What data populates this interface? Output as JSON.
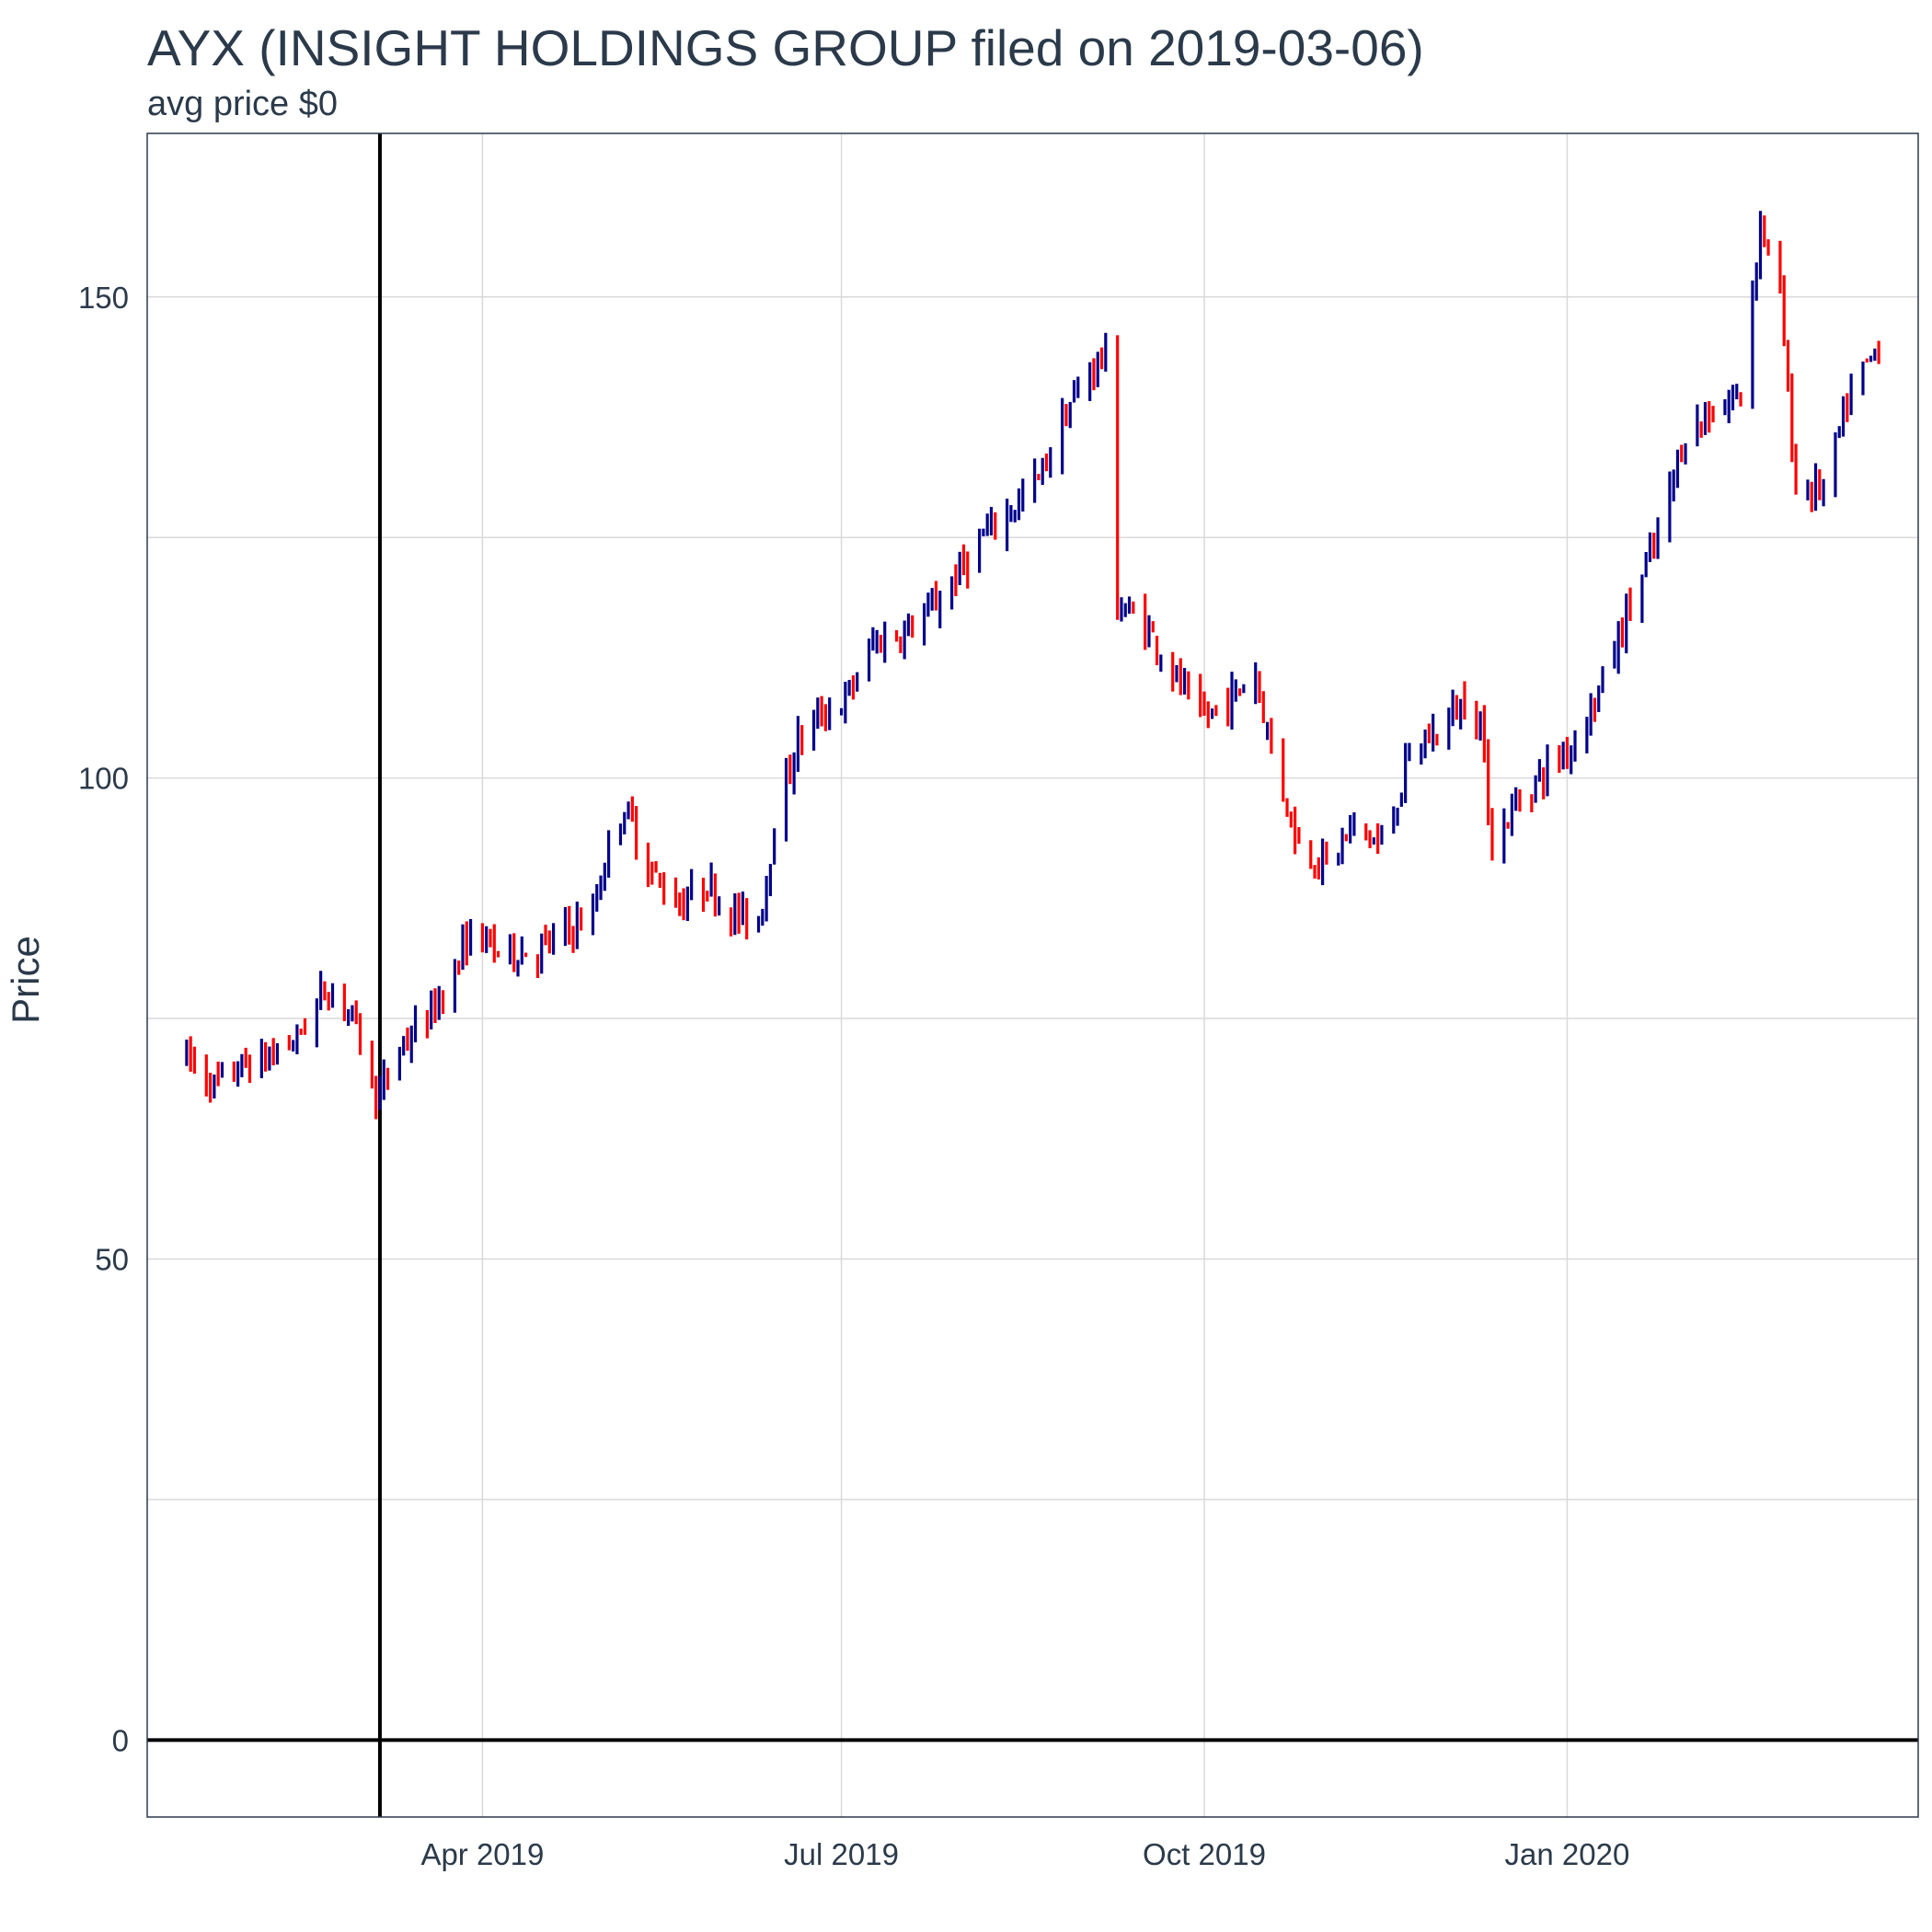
{
  "chart_data": {
    "type": "ohlc",
    "title": "AYX (INSIGHT HOLDINGS GROUP filed on 2019-03-06)",
    "subtitle": "avg price $0",
    "ylabel": "Price",
    "xlabel": "",
    "ylim": [
      -8,
      167
    ],
    "xlim": [
      "2019-01-06",
      "2020-03-30"
    ],
    "y_ticks": [
      0,
      50,
      100,
      150
    ],
    "x_ticks": [
      {
        "date": "2019-04-01",
        "label": "Apr 2019"
      },
      {
        "date": "2019-07-01",
        "label": "Jul 2019"
      },
      {
        "date": "2019-10-01",
        "label": "Oct 2019"
      },
      {
        "date": "2020-01-01",
        "label": "Jan 2020"
      }
    ],
    "grid": true,
    "reference_lines": {
      "vertical_date": "2019-03-06",
      "horizontal_value": 0
    },
    "colors": {
      "up": "#00008b",
      "down": "#ff0000",
      "reference": "#000000",
      "grid": "#d9d9d9",
      "panel_border": "#2b3a4a"
    },
    "anchors": [
      [
        "2019-01-16",
        71
      ],
      [
        "2019-01-23",
        68
      ],
      [
        "2019-01-30",
        70
      ],
      [
        "2019-02-06",
        71
      ],
      [
        "2019-02-13",
        73
      ],
      [
        "2019-02-20",
        78
      ],
      [
        "2019-02-25",
        77
      ],
      [
        "2019-03-01",
        73
      ],
      [
        "2019-03-04",
        68
      ],
      [
        "2019-03-06",
        67
      ],
      [
        "2019-03-11",
        72
      ],
      [
        "2019-03-18",
        75
      ],
      [
        "2019-03-25",
        80
      ],
      [
        "2019-03-29",
        84
      ],
      [
        "2019-04-05",
        82
      ],
      [
        "2019-04-15",
        82
      ],
      [
        "2019-04-22",
        84
      ],
      [
        "2019-04-29",
        86
      ],
      [
        "2019-05-03",
        93
      ],
      [
        "2019-05-07",
        97
      ],
      [
        "2019-05-14",
        90
      ],
      [
        "2019-05-21",
        87
      ],
      [
        "2019-05-28",
        89
      ],
      [
        "2019-06-03",
        86
      ],
      [
        "2019-06-10",
        85
      ],
      [
        "2019-06-14",
        95
      ],
      [
        "2019-06-20",
        104
      ],
      [
        "2019-06-27",
        107
      ],
      [
        "2019-07-02",
        108
      ],
      [
        "2019-07-09",
        114
      ],
      [
        "2019-07-16",
        115
      ],
      [
        "2019-07-23",
        117
      ],
      [
        "2019-07-30",
        121
      ],
      [
        "2019-08-06",
        125
      ],
      [
        "2019-08-13",
        128
      ],
      [
        "2019-08-20",
        131
      ],
      [
        "2019-08-27",
        138
      ],
      [
        "2019-09-03",
        143
      ],
      [
        "2019-09-06",
        144
      ],
      [
        "2019-09-09",
        118
      ],
      [
        "2019-09-16",
        116
      ],
      [
        "2019-09-23",
        111
      ],
      [
        "2019-09-30",
        106
      ],
      [
        "2019-10-07",
        108
      ],
      [
        "2019-10-14",
        111
      ],
      [
        "2019-10-18",
        103
      ],
      [
        "2019-10-25",
        93
      ],
      [
        "2019-11-01",
        91
      ],
      [
        "2019-11-08",
        95
      ],
      [
        "2019-11-15",
        93
      ],
      [
        "2019-11-22",
        102
      ],
      [
        "2019-11-29",
        105
      ],
      [
        "2019-12-06",
        108
      ],
      [
        "2019-12-10",
        106
      ],
      [
        "2019-12-13",
        93
      ],
      [
        "2019-12-20",
        98
      ],
      [
        "2019-12-27",
        101
      ],
      [
        "2020-01-03",
        104
      ],
      [
        "2020-01-10",
        110
      ],
      [
        "2020-01-17",
        118
      ],
      [
        "2020-01-24",
        125
      ],
      [
        "2020-01-31",
        136
      ],
      [
        "2020-02-07",
        138
      ],
      [
        "2020-02-14",
        140
      ],
      [
        "2020-02-19",
        158
      ],
      [
        "2020-02-24",
        150
      ],
      [
        "2020-02-28",
        130
      ],
      [
        "2020-03-06",
        130
      ],
      [
        "2020-03-13",
        140
      ],
      [
        "2020-03-20",
        145
      ]
    ]
  }
}
